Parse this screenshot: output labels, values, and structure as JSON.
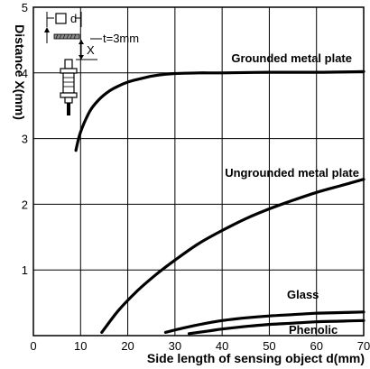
{
  "chart_data": {
    "type": "line",
    "xlabel": "Side length of sensing object d(mm)",
    "ylabel": "Distance X(mm)",
    "xlim": [
      0,
      70
    ],
    "ylim": [
      0,
      5
    ],
    "xticks": [
      0,
      10,
      20,
      30,
      40,
      50,
      60,
      70
    ],
    "yticks": [
      1,
      2,
      3,
      4,
      5
    ],
    "grid": true,
    "series": [
      {
        "name": "Grounded metal plate",
        "x": [
          9,
          10,
          12,
          14,
          16,
          18,
          20,
          22,
          25,
          28,
          30,
          35,
          40,
          50,
          60,
          70
        ],
        "y": [
          2.82,
          3.1,
          3.42,
          3.6,
          3.72,
          3.8,
          3.86,
          3.9,
          3.95,
          3.98,
          3.99,
          4.0,
          4.0,
          4.01,
          4.01,
          4.02
        ]
      },
      {
        "name": "Ungrounded metal plate",
        "x": [
          14.5,
          18,
          22,
          26,
          30,
          35,
          40,
          45,
          50,
          55,
          60,
          65,
          70
        ],
        "y": [
          0.05,
          0.38,
          0.68,
          0.93,
          1.15,
          1.4,
          1.6,
          1.78,
          1.93,
          2.06,
          2.18,
          2.28,
          2.38
        ]
      },
      {
        "name": "Glass",
        "x": [
          28,
          32,
          36,
          40,
          45,
          50,
          55,
          60,
          65,
          70
        ],
        "y": [
          0.05,
          0.12,
          0.18,
          0.23,
          0.27,
          0.3,
          0.32,
          0.34,
          0.35,
          0.36
        ]
      },
      {
        "name": "Phenolic",
        "x": [
          33,
          37,
          40,
          45,
          50,
          55,
          60,
          65,
          70
        ],
        "y": [
          0.03,
          0.07,
          0.1,
          0.14,
          0.17,
          0.19,
          0.21,
          0.22,
          0.23
        ]
      }
    ],
    "inset": {
      "d_label": "d",
      "x_label": "X",
      "t_label": "t=3mm"
    }
  }
}
